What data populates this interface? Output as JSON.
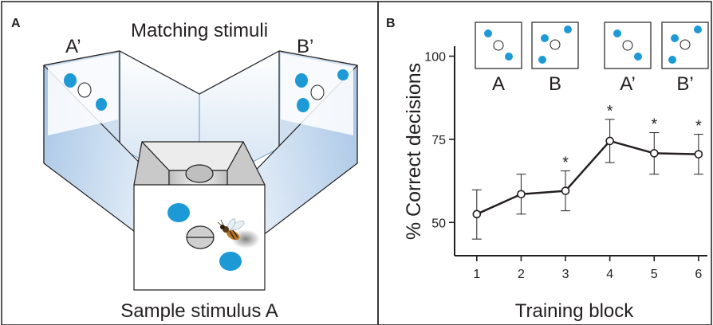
{
  "panel_a": {
    "letter": "A",
    "title": "Matching stimuli",
    "left_arm_label": "A’",
    "right_arm_label": "B’",
    "bottom_label": "Sample stimulus A"
  },
  "panel_b": {
    "letter": "B",
    "stimuli": [
      {
        "label": "A",
        "pattern": "diag-down"
      },
      {
        "label": "B",
        "pattern": "triangle"
      },
      {
        "label": "A’",
        "pattern": "diag-down"
      },
      {
        "label": "B’",
        "pattern": "triangle"
      }
    ]
  },
  "colors": {
    "dot": "#1d9ad6",
    "arm_face": "#b8d2ec",
    "arm_light": "#e6eff8",
    "chamber": "#d6d6d6",
    "line": "#231f20"
  },
  "chart_data": {
    "type": "line",
    "xlabel": "Training block",
    "ylabel": "% Correct decisions",
    "xlim": [
      0.5,
      6.2
    ],
    "ylim": [
      40,
      103
    ],
    "yticks": [
      50,
      75,
      100
    ],
    "series": [
      {
        "x": [
          1,
          2,
          3,
          4,
          5,
          6
        ],
        "y": [
          52.5,
          58.5,
          59.5,
          74.5,
          70.8,
          70.5
        ],
        "err_upper": [
          59.8,
          64.5,
          65.5,
          81.0,
          77.0,
          76.5
        ],
        "err_lower": [
          45.0,
          52.5,
          53.5,
          68.0,
          64.5,
          64.5
        ],
        "significant": [
          "",
          "",
          "*",
          "*",
          "*",
          "*"
        ]
      }
    ],
    "grid": false,
    "legend": "none"
  }
}
